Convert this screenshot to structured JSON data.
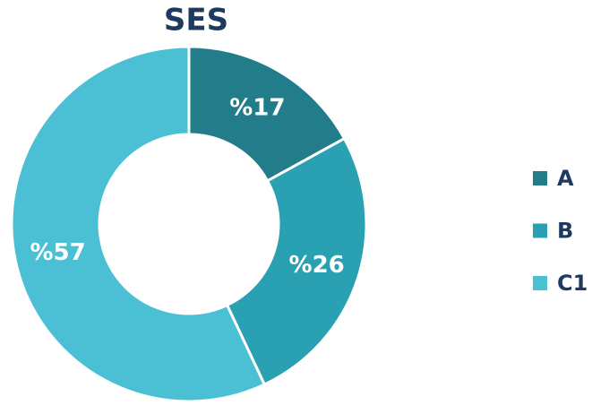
{
  "chart_data": {
    "type": "donut",
    "title": "SES",
    "categories": [
      "A",
      "B",
      "C1"
    ],
    "values": [
      17,
      26,
      57
    ],
    "value_labels": [
      "%17",
      "%26",
      "%57"
    ],
    "colors": [
      "#237c8a",
      "#2aa0b3",
      "#4bc0d4"
    ],
    "legend": "right"
  }
}
